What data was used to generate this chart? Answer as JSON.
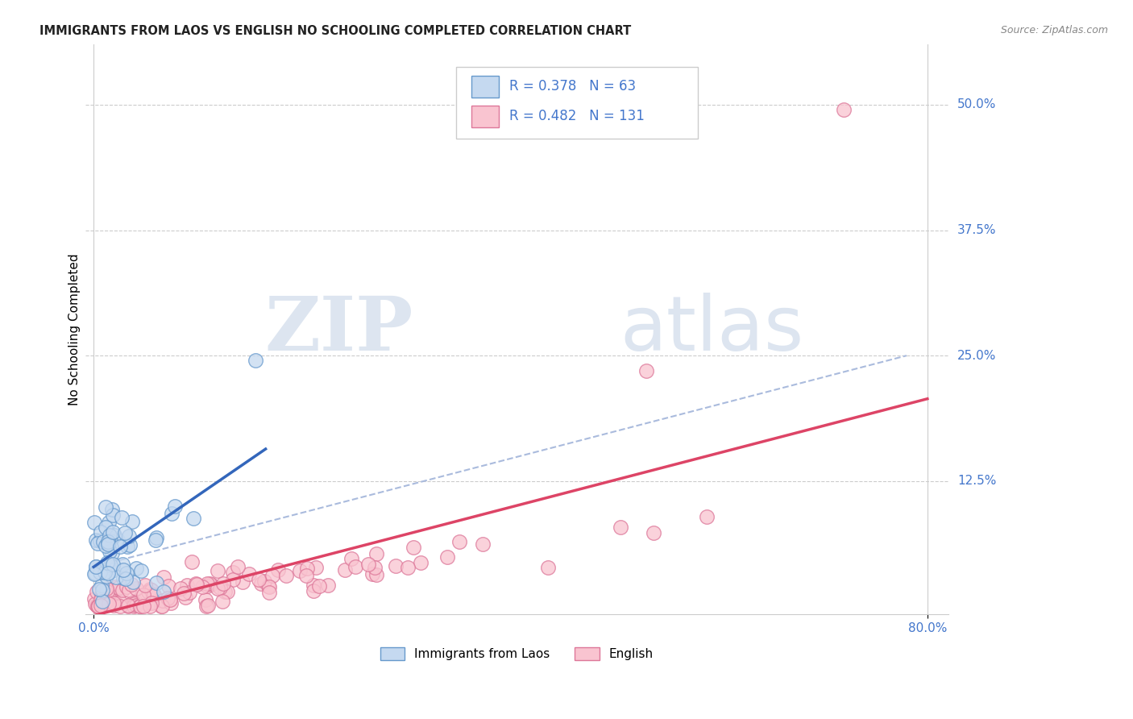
{
  "title": "IMMIGRANTS FROM LAOS VS ENGLISH NO SCHOOLING COMPLETED CORRELATION CHART",
  "source": "Source: ZipAtlas.com",
  "ylabel": "No Schooling Completed",
  "right_yticks": [
    "50.0%",
    "37.5%",
    "25.0%",
    "12.5%"
  ],
  "right_ytick_vals": [
    0.5,
    0.375,
    0.25,
    0.125
  ],
  "xlim": [
    0.0,
    0.8
  ],
  "ylim": [
    0.0,
    0.54
  ],
  "watermark_ZIP": "ZIP",
  "watermark_atlas": "atlas",
  "legend_blue_R": "R = 0.378",
  "legend_blue_N": "N = 63",
  "legend_pink_R": "R = 0.482",
  "legend_pink_N": "N = 131",
  "legend_label_blue": "Immigrants from Laos",
  "legend_label_pink": "English",
  "blue_fill": "#c5d9f0",
  "blue_edge": "#6699cc",
  "pink_fill": "#f9c4d0",
  "pink_edge": "#dd7799",
  "blue_line": "#3366bb",
  "pink_line": "#dd4466",
  "dashed_line": "#aabbdd",
  "grid_color": "#cccccc",
  "label_color": "#4477cc",
  "title_color": "#222222",
  "source_color": "#888888"
}
